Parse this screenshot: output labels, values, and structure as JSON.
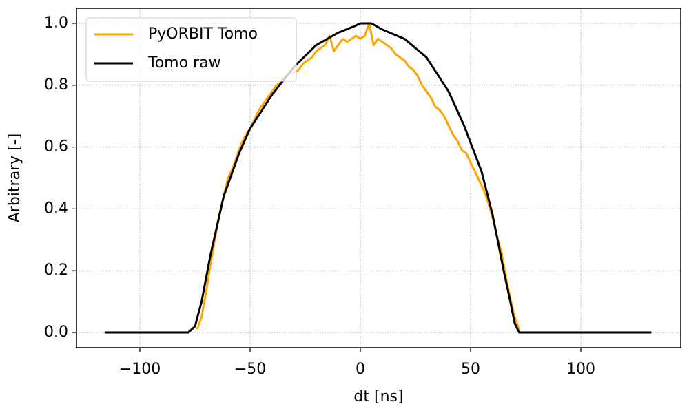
{
  "chart_data": {
    "type": "line",
    "x_label": "dt [ns]",
    "y_label": "Arbitrary [-]",
    "xlim": [
      -128.75,
      145.3
    ],
    "ylim": [
      -0.049,
      1.049
    ],
    "xticks": [
      {
        "value": -100,
        "label": "−100"
      },
      {
        "value": -50,
        "label": "−50"
      },
      0,
      50,
      100
    ],
    "yticks": [
      {
        "value": 0,
        "label": "0.0"
      },
      0.2,
      0.4,
      0.6,
      0.8,
      {
        "value": 1,
        "label": "1.0"
      }
    ],
    "grid": true,
    "legend": "upper left",
    "series": [
      {
        "name": "PyORBIT Tomo",
        "color": "#ffa500",
        "x": [
          -74,
          -72,
          -70,
          -68,
          -66,
          -64,
          -62,
          -60,
          -58,
          -56,
          -54,
          -52,
          -50,
          -48,
          -46,
          -44,
          -42,
          -40,
          -38,
          -36,
          -34,
          -32,
          -30,
          -28,
          -26,
          -24,
          -22,
          -20,
          -18,
          -16,
          -14,
          -12,
          -10,
          -8,
          -6,
          -4,
          -2,
          0,
          2,
          4,
          6,
          8,
          10,
          12,
          14,
          16,
          18,
          20,
          22,
          24,
          26,
          28,
          30,
          32,
          34,
          36,
          38,
          40,
          42,
          44,
          46,
          48,
          50,
          52,
          54,
          56,
          58,
          60,
          62,
          64,
          66,
          68,
          70,
          72
        ],
        "values": [
          0.01,
          0.05,
          0.13,
          0.22,
          0.3,
          0.38,
          0.44,
          0.5,
          0.53,
          0.57,
          0.61,
          0.64,
          0.66,
          0.69,
          0.72,
          0.74,
          0.76,
          0.78,
          0.8,
          0.81,
          0.83,
          0.84,
          0.84,
          0.85,
          0.87,
          0.88,
          0.89,
          0.91,
          0.92,
          0.93,
          0.96,
          0.91,
          0.93,
          0.95,
          0.94,
          0.95,
          0.96,
          0.95,
          0.96,
          1.0,
          0.93,
          0.95,
          0.94,
          0.93,
          0.92,
          0.9,
          0.89,
          0.88,
          0.86,
          0.85,
          0.83,
          0.8,
          0.78,
          0.76,
          0.73,
          0.72,
          0.7,
          0.67,
          0.64,
          0.62,
          0.59,
          0.58,
          0.55,
          0.52,
          0.49,
          0.46,
          0.42,
          0.37,
          0.31,
          0.26,
          0.18,
          0.11,
          0.05,
          0.01
        ]
      },
      {
        "name": "Tomo raw",
        "color": "#000000",
        "x": [
          -116,
          -78,
          -75,
          -72,
          -68,
          -62,
          -55,
          -50,
          -40,
          -30,
          -20,
          -10,
          -3,
          0,
          5,
          10,
          20,
          30,
          40,
          47,
          55,
          60,
          65,
          68,
          70,
          72,
          132
        ],
        "values": [
          0,
          0,
          0.02,
          0.1,
          0.25,
          0.44,
          0.58,
          0.66,
          0.77,
          0.86,
          0.93,
          0.97,
          0.99,
          1.0,
          1.0,
          0.98,
          0.95,
          0.89,
          0.78,
          0.67,
          0.52,
          0.38,
          0.2,
          0.1,
          0.03,
          0,
          0
        ]
      }
    ]
  }
}
